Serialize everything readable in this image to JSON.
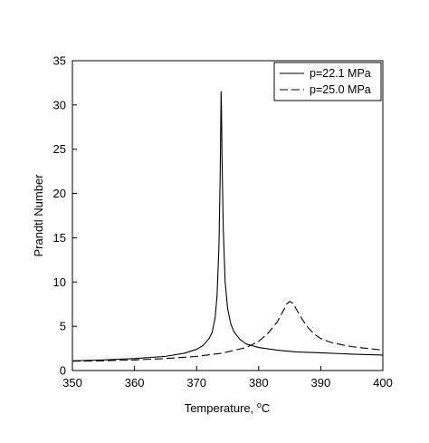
{
  "chart_data": {
    "type": "line",
    "title": "",
    "xlabel": "Temperature, °C",
    "xlabel_main": "Temperature, ",
    "xlabel_super": "o",
    "xlabel_unit": "C",
    "ylabel": "Prandtl Number",
    "xlim": [
      350,
      400
    ],
    "ylim": [
      0,
      35
    ],
    "xticks": [
      "350",
      "360",
      "370",
      "380",
      "390",
      "400"
    ],
    "yticks": [
      "0",
      "5",
      "10",
      "15",
      "20",
      "25",
      "30",
      "35"
    ],
    "grid": false,
    "legend_position": "top-right",
    "series": [
      {
        "name": "p=22.1 MPa",
        "style": "solid",
        "color": "#000000",
        "x": [
          350,
          355,
          360,
          365,
          368,
          370,
          371,
          372,
          372.5,
          373,
          373.3,
          373.6,
          373.8,
          373.95,
          374.0,
          374.1,
          374.3,
          374.6,
          375,
          375.5,
          376,
          377,
          378,
          380,
          383,
          386,
          390,
          395,
          400
        ],
        "y": [
          1.1,
          1.2,
          1.35,
          1.6,
          1.95,
          2.4,
          2.8,
          3.6,
          4.3,
          6.0,
          8.5,
          14.0,
          22.0,
          31.5,
          30.0,
          24.0,
          16.0,
          10.0,
          7.0,
          5.3,
          4.4,
          3.5,
          3.0,
          2.6,
          2.3,
          2.1,
          2.0,
          1.85,
          1.75
        ]
      },
      {
        "name": "p=25.0 MPa",
        "style": "dashed",
        "color": "#000000",
        "x": [
          350,
          355,
          360,
          365,
          370,
          374,
          378,
          380,
          381.5,
          383,
          384,
          384.5,
          385,
          385.5,
          386,
          387,
          388,
          389,
          390,
          392,
          395,
          400
        ],
        "y": [
          1.05,
          1.1,
          1.2,
          1.35,
          1.6,
          1.95,
          2.6,
          3.3,
          4.2,
          5.5,
          6.8,
          7.5,
          7.8,
          7.6,
          7.0,
          5.8,
          4.8,
          4.1,
          3.6,
          3.1,
          2.7,
          2.3
        ]
      }
    ]
  }
}
